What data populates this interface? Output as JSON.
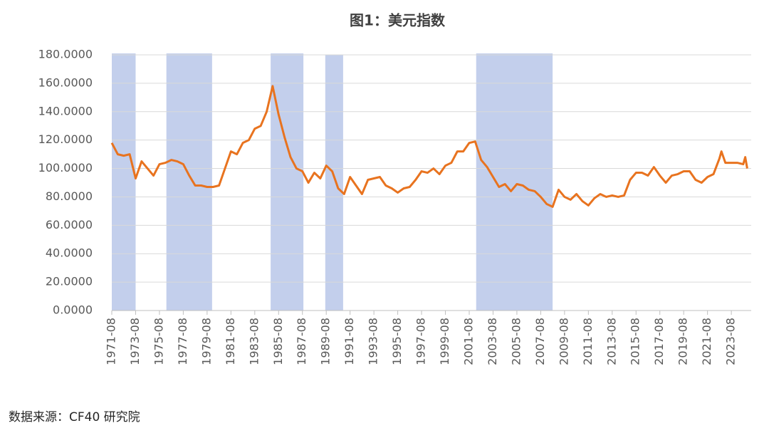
{
  "chart_data": {
    "type": "line",
    "title": "图1：美元指数",
    "source": "数据来源：CF40 研究院",
    "color": "#e8731f",
    "shade_color": "#c3cfec",
    "grid": true,
    "x": [
      "1971-08",
      "1972-02",
      "1972-08",
      "1973-02",
      "1973-08",
      "1974-02",
      "1974-08",
      "1975-02",
      "1975-08",
      "1976-02",
      "1976-08",
      "1977-02",
      "1977-08",
      "1978-02",
      "1978-08",
      "1979-02",
      "1979-08",
      "1980-02",
      "1980-08",
      "1981-02",
      "1981-08",
      "1982-02",
      "1982-08",
      "1983-02",
      "1983-08",
      "1984-02",
      "1984-08",
      "1985-02",
      "1985-08",
      "1986-02",
      "1986-08",
      "1987-02",
      "1987-08",
      "1988-02",
      "1988-08",
      "1989-02",
      "1989-08",
      "1990-02",
      "1990-08",
      "1991-02",
      "1991-08",
      "1992-02",
      "1992-08",
      "1993-02",
      "1993-08",
      "1994-02",
      "1994-08",
      "1995-02",
      "1995-08",
      "1996-02",
      "1996-08",
      "1997-02",
      "1997-08",
      "1998-02",
      "1998-08",
      "1999-02",
      "1999-08",
      "2000-02",
      "2000-08",
      "2001-02",
      "2001-08",
      "2002-02",
      "2002-08",
      "2003-02",
      "2003-08",
      "2004-02",
      "2004-08",
      "2005-02",
      "2005-08",
      "2006-02",
      "2006-08",
      "2007-02",
      "2007-08",
      "2008-02",
      "2008-08",
      "2009-02",
      "2009-08",
      "2010-02",
      "2010-08",
      "2011-02",
      "2011-08",
      "2012-02",
      "2012-08",
      "2013-02",
      "2013-08",
      "2014-02",
      "2014-08",
      "2015-02",
      "2015-08",
      "2016-02",
      "2016-08",
      "2017-02",
      "2017-08",
      "2018-02",
      "2018-08",
      "2019-02",
      "2019-08",
      "2020-02",
      "2020-08",
      "2021-02",
      "2021-08",
      "2022-02",
      "2022-08",
      "2022-10",
      "2023-02",
      "2023-08",
      "2024-02",
      "2024-08",
      "2024-10",
      "2024-12"
    ],
    "values": [
      118,
      110,
      109,
      110,
      93,
      105,
      100,
      95,
      103,
      104,
      106,
      105,
      103,
      95,
      88,
      88,
      87,
      87,
      88,
      100,
      112,
      110,
      118,
      120,
      128,
      130,
      140,
      158,
      138,
      122,
      108,
      100,
      98,
      90,
      97,
      93,
      102,
      98,
      86,
      82,
      94,
      88,
      82,
      92,
      93,
      94,
      88,
      86,
      83,
      86,
      87,
      92,
      98,
      97,
      100,
      96,
      102,
      104,
      112,
      112,
      118,
      119,
      106,
      101,
      94,
      87,
      89,
      84,
      89,
      88,
      85,
      84,
      80,
      75,
      73,
      85,
      80,
      78,
      82,
      77,
      74,
      79,
      82,
      80,
      81,
      80,
      81,
      92,
      97,
      97,
      95,
      101,
      95,
      90,
      95,
      96,
      98,
      98,
      92,
      90,
      94,
      96,
      107,
      112,
      104,
      104,
      104,
      103,
      108,
      100
    ],
    "shaded": [
      {
        "start": "1971-08",
        "end": "1973-08",
        "top": 181
      },
      {
        "start": "1976-03",
        "end": "1980-01",
        "top": 181
      },
      {
        "start": "1984-12",
        "end": "1987-09",
        "top": 181
      },
      {
        "start": "1989-07",
        "end": "1991-01",
        "top": 180
      },
      {
        "start": "2002-03",
        "end": "2008-08",
        "top": 181
      }
    ],
    "xlim": [
      "1971-08",
      "2025-04"
    ],
    "xticks": [
      "1971-08",
      "1973-08",
      "1975-08",
      "1977-08",
      "1979-08",
      "1981-08",
      "1983-08",
      "1985-08",
      "1987-08",
      "1989-08",
      "1991-08",
      "1993-08",
      "1995-08",
      "1997-08",
      "1999-08",
      "2001-08",
      "2003-08",
      "2005-08",
      "2007-08",
      "2009-08",
      "2011-08",
      "2013-08",
      "2015-08",
      "2017-08",
      "2019-08",
      "2021-08",
      "2023-08"
    ],
    "ylim": [
      0,
      180
    ],
    "yticks": [
      {
        "value": 0,
        "label": "0.0000"
      },
      {
        "value": 20,
        "label": "20.0000"
      },
      {
        "value": 40,
        "label": "40.0000"
      },
      {
        "value": 60,
        "label": "60.0000"
      },
      {
        "value": 80,
        "label": "80.0000"
      },
      {
        "value": 100,
        "label": "100.0000"
      },
      {
        "value": 120,
        "label": "120.0000"
      },
      {
        "value": 140,
        "label": "140.0000"
      },
      {
        "value": 160,
        "label": "160.0000"
      },
      {
        "value": 180,
        "label": "180.0000"
      }
    ]
  }
}
